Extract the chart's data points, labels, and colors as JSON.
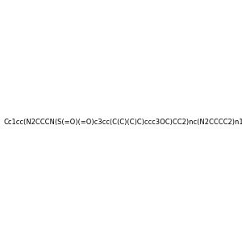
{
  "smiles": "Cc1cc(N2CCCN(S(=O)(=O)c3cc(C(C)(C)C)ccc3OC)CC2)nc(N2CCCC2)n1",
  "image_size": 300,
  "background_color": "#e8e8e8",
  "title": ""
}
